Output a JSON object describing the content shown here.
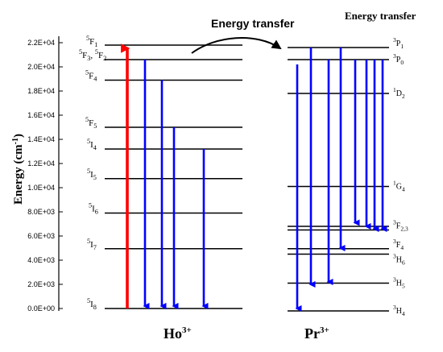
{
  "header": {
    "transfer_arrow_label": "Energy transfer",
    "corner_label": "Energy transfer"
  },
  "axis": {
    "ylabel_main": "Energy (cm",
    "ylabel_sup": "-1",
    "ylabel_tail": ")",
    "ylim": [
      0,
      22000
    ],
    "ticks": [
      {
        "value": 0,
        "label": "0.0E+00"
      },
      {
        "value": 2000,
        "label": "2.0E+03"
      },
      {
        "value": 4000,
        "label": "4.0E+03"
      },
      {
        "value": 6000,
        "label": "6.0E+03"
      },
      {
        "value": 8000,
        "label": "8.0E+03"
      },
      {
        "value": 10000,
        "label": "1.0E+04"
      },
      {
        "value": 12000,
        "label": "1.2E+04"
      },
      {
        "value": 14000,
        "label": "1.4E+04"
      },
      {
        "value": 16000,
        "label": "1.6E+04"
      },
      {
        "value": 18000,
        "label": "1.8E+04"
      },
      {
        "value": 20000,
        "label": "2.0E+04"
      },
      {
        "value": 22000,
        "label": "2.2E+04"
      }
    ]
  },
  "ho": {
    "ion_base": "Ho",
    "ion_sup": "3+",
    "levels": [
      {
        "energy": 0,
        "multiplicity": "5",
        "term": "I",
        "j": "8"
      },
      {
        "energy": 4950,
        "multiplicity": "5",
        "term": "I",
        "j": "7"
      },
      {
        "energy": 7900,
        "multiplicity": "5",
        "term": "I",
        "j": "6"
      },
      {
        "energy": 10750,
        "multiplicity": "5",
        "term": "I",
        "j": "5"
      },
      {
        "energy": 13200,
        "multiplicity": "5",
        "term": "I",
        "j": "4"
      },
      {
        "energy": 15000,
        "multiplicity": "5",
        "term": "F",
        "j": "5"
      },
      {
        "energy": 18900,
        "multiplicity": "5",
        "term": "F",
        "j": "4"
      },
      {
        "energy": 20600,
        "multiplicity": "5",
        "term": "F",
        "j": "3",
        "second": {
          "multiplicity": "5",
          "term": "F",
          "j": "2"
        }
      },
      {
        "energy": 21800,
        "multiplicity": "5",
        "term": "F",
        "j": "1"
      }
    ],
    "excitation": {
      "from": 0,
      "to": 21800,
      "color": "#ff0000"
    },
    "emissions": [
      {
        "from": 20600,
        "to": 0
      },
      {
        "from": 18900,
        "to": 0
      },
      {
        "from": 15000,
        "to": 0
      },
      {
        "from": 13200,
        "to": 0
      }
    ],
    "arrow_color": "#0000ff"
  },
  "pr": {
    "ion_base": "Pr",
    "ion_sup": "3+",
    "levels": [
      {
        "energy": -200,
        "multiplicity": "3",
        "term": "H",
        "j": "4"
      },
      {
        "energy": 2100,
        "multiplicity": "3",
        "term": "H",
        "j": "5"
      },
      {
        "energy": 4500,
        "multiplicity": "3",
        "term": "H",
        "j": "6"
      },
      {
        "energy": 4950,
        "multiplicity": "3",
        "term": "F",
        "j": "4"
      },
      {
        "energy": 6500,
        "multiplicity": "3",
        "term": "F",
        "j": "2,3"
      },
      {
        "energy": 6800,
        "multiplicity": "",
        "term": "",
        "j": ""
      },
      {
        "energy": 10100,
        "multiplicity": "1",
        "term": "G",
        "j": "4"
      },
      {
        "energy": 17800,
        "multiplicity": "1",
        "term": "D",
        "j": "2"
      },
      {
        "energy": 20600,
        "multiplicity": "3",
        "term": "P",
        "j": "0"
      },
      {
        "energy": 21600,
        "multiplicity": "3",
        "term": "P",
        "j": "1"
      }
    ],
    "emissions": [
      {
        "from": 20200,
        "to": -200
      },
      {
        "from": 21600,
        "to": 1800
      },
      {
        "from": 20600,
        "to": 2000
      },
      {
        "from": 21600,
        "to": 4800
      },
      {
        "from": 20600,
        "to": 6900
      },
      {
        "from": 20600,
        "to": 6600
      },
      {
        "from": 20600,
        "to": 6400
      },
      {
        "from": 20600,
        "to": 6400
      }
    ],
    "arrow_color": "#0000ff"
  }
}
